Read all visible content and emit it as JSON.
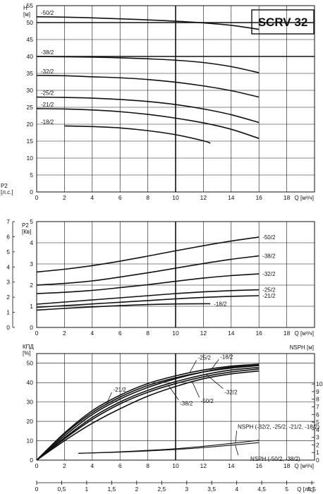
{
  "model": "SCRV 32",
  "chart_data": [
    {
      "id": "head",
      "type": "line",
      "ylabel": "H\n[м]",
      "xlabel": "Q [м³/ч]",
      "xlim": [
        0,
        20
      ],
      "ylim": [
        0,
        55
      ],
      "xticks": [
        0,
        2,
        4,
        6,
        8,
        10,
        12,
        14,
        16,
        18
      ],
      "yticks": [
        0,
        5,
        10,
        15,
        20,
        25,
        30,
        35,
        40,
        45,
        50,
        55
      ],
      "series": [
        {
          "name": "-50/2",
          "x": [
            0,
            2,
            4,
            6,
            8,
            10,
            12,
            14,
            16
          ],
          "y": [
            51.7,
            51.6,
            51.4,
            51.1,
            50.8,
            50.4,
            49.9,
            49.2,
            48.0
          ]
        },
        {
          "name": "-38/2",
          "x": [
            0,
            2,
            4,
            6,
            8,
            10,
            12,
            14,
            16
          ],
          "y": [
            40.0,
            39.9,
            39.8,
            39.6,
            39.3,
            38.9,
            38.2,
            37.0,
            35.2
          ]
        },
        {
          "name": "-32/2",
          "x": [
            0,
            2,
            4,
            6,
            8,
            10,
            12,
            14,
            16
          ],
          "y": [
            34.4,
            34.3,
            34.0,
            33.7,
            33.2,
            32.4,
            31.3,
            29.9,
            28.0
          ]
        },
        {
          "name": "-25/2",
          "x": [
            0,
            2,
            4,
            6,
            8,
            10,
            12,
            14,
            16
          ],
          "y": [
            28.0,
            27.9,
            27.7,
            27.3,
            26.7,
            25.8,
            24.5,
            22.8,
            20.5
          ]
        },
        {
          "name": "-21/2",
          "x": [
            0,
            2,
            4,
            6,
            8,
            10,
            12,
            14,
            16
          ],
          "y": [
            24.6,
            24.5,
            24.2,
            23.7,
            22.9,
            21.8,
            20.4,
            18.5,
            15.8
          ]
        },
        {
          "name": "-18/2",
          "x": [
            2,
            4,
            6,
            8,
            10,
            12,
            12.5
          ],
          "y": [
            19.5,
            19.3,
            18.9,
            18.1,
            16.9,
            15.1,
            14.4
          ]
        }
      ]
    },
    {
      "id": "power",
      "type": "line",
      "ylabel": "P2\n[Кв]",
      "ylabel2": "P2\n[л.с.]",
      "xlabel": "Q [м³/ч]",
      "xlim": [
        0,
        20
      ],
      "ylim": [
        0,
        5
      ],
      "ylim2": [
        0,
        7
      ],
      "xticks": [
        0,
        2,
        4,
        6,
        8,
        10,
        12,
        14,
        16,
        18
      ],
      "yticks": [
        0,
        1,
        2,
        3,
        4,
        5
      ],
      "yticks2": [
        0,
        1,
        2,
        3,
        4,
        5,
        6,
        7
      ],
      "series": [
        {
          "name": "-50/2",
          "x": [
            0,
            2,
            4,
            6,
            8,
            10,
            12,
            14,
            16
          ],
          "y": [
            2.62,
            2.75,
            2.92,
            3.13,
            3.37,
            3.62,
            3.86,
            4.08,
            4.27
          ]
        },
        {
          "name": "-38/2",
          "x": [
            0,
            2,
            4,
            6,
            8,
            10,
            12,
            14,
            16
          ],
          "y": [
            2.0,
            2.08,
            2.2,
            2.38,
            2.58,
            2.8,
            3.02,
            3.22,
            3.38
          ]
        },
        {
          "name": "-32/2",
          "x": [
            0,
            2,
            4,
            6,
            8,
            10,
            12,
            14,
            16
          ],
          "y": [
            1.6,
            1.66,
            1.75,
            1.88,
            2.02,
            2.18,
            2.33,
            2.45,
            2.53
          ]
        },
        {
          "name": "-25/2",
          "x": [
            0,
            2,
            4,
            6,
            8,
            10,
            12,
            14,
            16
          ],
          "y": [
            1.1,
            1.2,
            1.3,
            1.4,
            1.5,
            1.6,
            1.68,
            1.74,
            1.78
          ]
        },
        {
          "name": "-21/2",
          "x": [
            0,
            2,
            4,
            6,
            8,
            10,
            12,
            14,
            16
          ],
          "y": [
            0.95,
            1.03,
            1.11,
            1.19,
            1.27,
            1.35,
            1.42,
            1.47,
            1.5
          ]
        },
        {
          "name": "-18/2",
          "x": [
            0,
            2,
            4,
            6,
            8,
            10,
            12,
            12.5
          ],
          "y": [
            0.82,
            0.9,
            0.97,
            1.03,
            1.08,
            1.11,
            1.12,
            1.12
          ]
        }
      ]
    },
    {
      "id": "efficiency",
      "type": "line",
      "ylabel": "КПД\n[%]",
      "ylabel2": "NSPH [м]",
      "xlabel": "Q [м³/ч]",
      "xlabel2": "Q [л/с]",
      "xlim": [
        0,
        20
      ],
      "ylim": [
        0,
        55
      ],
      "ylim2": [
        0,
        14
      ],
      "xticks": [
        0,
        2,
        4,
        6,
        8,
        10,
        12,
        14,
        16,
        18
      ],
      "xticks2": [
        "0",
        "0,5",
        "1",
        "1,5",
        "2",
        "2,5",
        "3",
        "3,5",
        "4",
        "4,5",
        "5",
        "5,5"
      ],
      "yticks": [
        0,
        10,
        20,
        30,
        40,
        50
      ],
      "yticks2": [
        0,
        1,
        2,
        3,
        4,
        5,
        6,
        7,
        8,
        9,
        10
      ],
      "series": [
        {
          "name": "-25/2",
          "x": [
            0,
            2,
            4,
            6,
            8,
            10,
            12,
            14,
            16
          ],
          "y": [
            0,
            14,
            25.5,
            33.5,
            39.5,
            43.5,
            46.5,
            48.5,
            49.5
          ]
        },
        {
          "name": "-18/2",
          "x": [
            0,
            2,
            4,
            6,
            8,
            10,
            12,
            14,
            16
          ],
          "y": [
            0,
            12.5,
            23.5,
            31.5,
            37.5,
            42.0,
            45.5,
            48.0,
            49.3
          ]
        },
        {
          "name": "-21/2",
          "x": [
            0,
            2,
            4,
            6,
            8,
            10,
            12,
            14,
            16
          ],
          "y": [
            0,
            13.5,
            24.5,
            32.5,
            38.5,
            42.5,
            45.5,
            47.5,
            48.8
          ]
        },
        {
          "name": "-32/2",
          "x": [
            0,
            2,
            4,
            6,
            8,
            10,
            12,
            14,
            16
          ],
          "y": [
            0,
            11.5,
            22,
            30,
            36,
            40.5,
            44,
            46.5,
            47.8
          ]
        },
        {
          "name": "-38/2",
          "x": [
            0,
            2,
            4,
            6,
            8,
            10,
            12,
            14,
            16
          ],
          "y": [
            0,
            11,
            21,
            29,
            35,
            39.5,
            43,
            45.5,
            47.0
          ]
        },
        {
          "name": "-50/2",
          "x": [
            0,
            2,
            4,
            6,
            8,
            10,
            12,
            14,
            16
          ],
          "y": [
            0,
            10,
            19,
            26.5,
            33,
            38,
            42,
            44.5,
            46.0
          ]
        },
        {
          "name": "NSPH (-32/2, -25/2, -21/2, -18/2)",
          "axis": "right",
          "x": [
            3,
            6,
            10,
            13,
            16
          ],
          "y": [
            0.9,
            1.1,
            1.5,
            2.0,
            2.6
          ]
        },
        {
          "name": "NSPH (-50/2, -38/2)",
          "axis": "right",
          "x": [
            3,
            6,
            10,
            13,
            16
          ],
          "y": [
            0.9,
            1.05,
            1.4,
            1.8,
            2.3
          ]
        }
      ]
    }
  ]
}
